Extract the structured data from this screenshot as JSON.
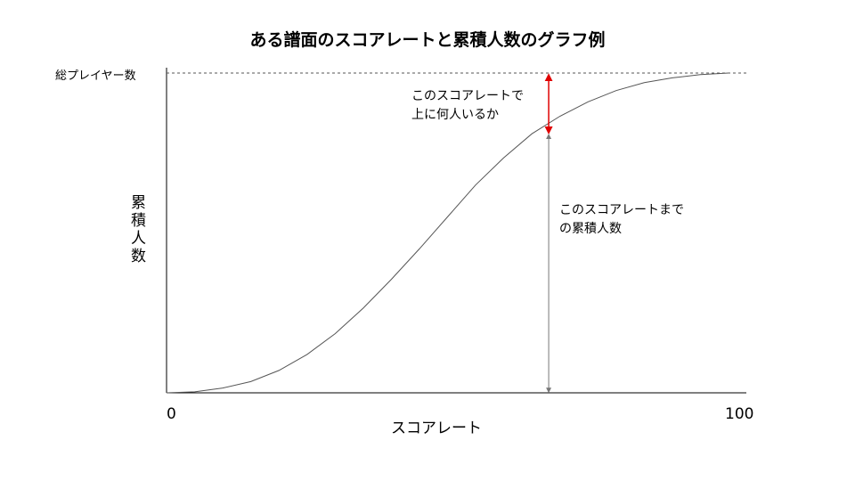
{
  "chart_data": {
    "type": "line",
    "title": "ある譜面のスコアレートと累積人数のグラフ例",
    "xlabel": "スコアレート",
    "ylabel": "累積人数",
    "xlim": [
      0,
      100
    ],
    "x_tick_labels": [
      "0",
      "100"
    ],
    "y_max_label": "総プレイヤー数",
    "grid": false,
    "series": [
      {
        "x": [
          0,
          5,
          10,
          15,
          20,
          25,
          30,
          35,
          40,
          45,
          50,
          55,
          60,
          65,
          70,
          75,
          80,
          85,
          90,
          95,
          100
        ],
        "y": [
          0,
          0.3,
          1.5,
          3.5,
          7,
          12,
          18.5,
          26.5,
          35.5,
          45,
          55,
          65,
          73.5,
          81,
          86.5,
          91,
          94.5,
          97,
          98.5,
          99.5,
          100
        ]
      }
    ],
    "marker": {
      "x": 68,
      "y": 81
    },
    "annotations": {
      "above": [
        "このスコアレートで",
        "上に何人いるか"
      ],
      "below": [
        "このスコアレートまで",
        "の累積人数"
      ]
    },
    "colors": {
      "curve": "#555555",
      "above_arrow": "#e00000",
      "below_arrow": "#777777"
    }
  }
}
